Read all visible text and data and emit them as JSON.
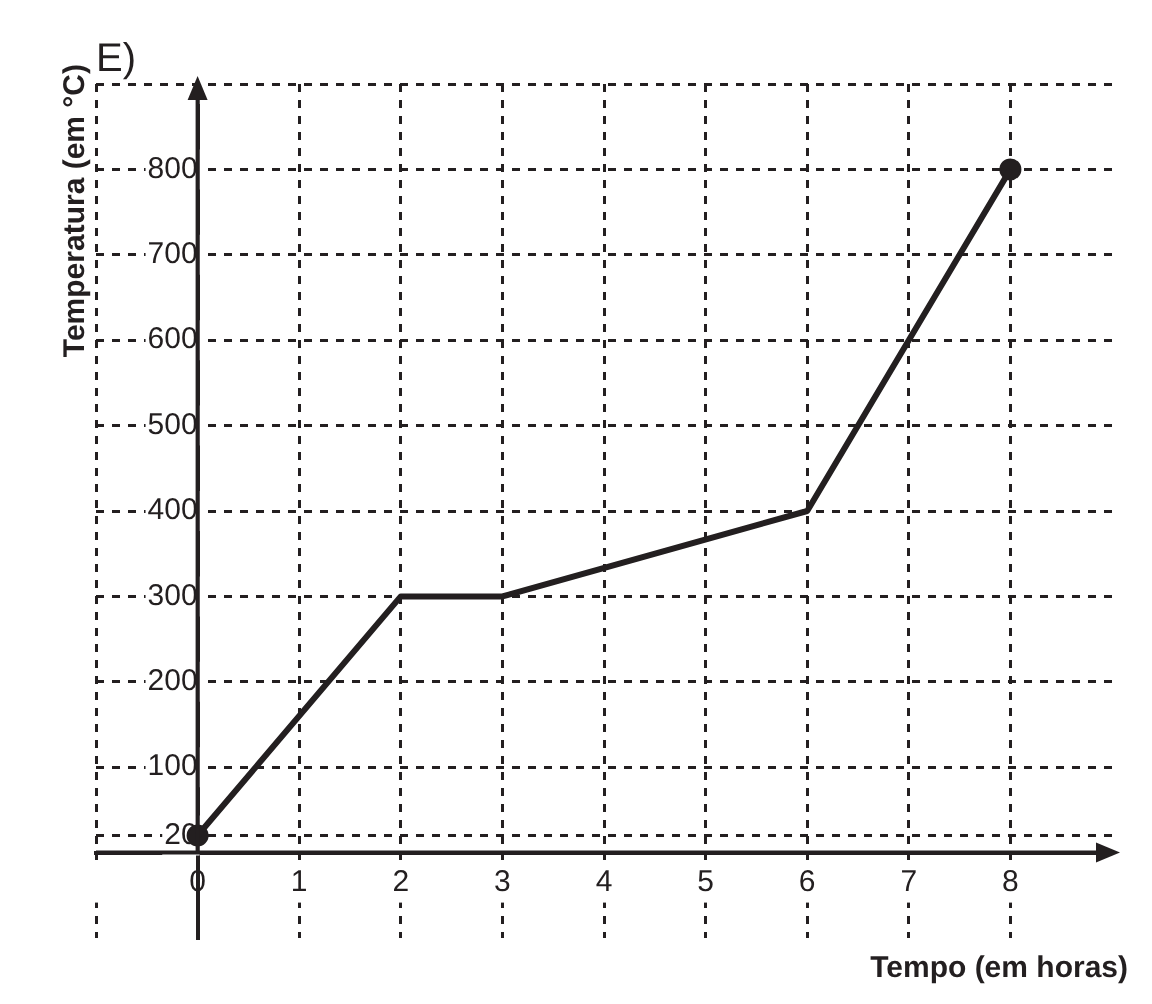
{
  "chart_data": {
    "type": "line",
    "title": "E)",
    "xlabel": "Tempo (em horas)",
    "ylabel": "Temperatura (em °C)",
    "xlim": [
      -1,
      9
    ],
    "xticks": [
      {
        "value": -1,
        "label": null
      },
      0,
      1,
      2,
      3,
      4,
      5,
      6,
      7,
      8
    ],
    "ylim": [
      -100,
      900
    ],
    "yticks": [
      20,
      100,
      200,
      300,
      400,
      500,
      600,
      700,
      800,
      {
        "value": 900,
        "label": null
      }
    ],
    "grid": true,
    "legend": false,
    "series": [
      {
        "type": "line",
        "x": [
          0,
          2,
          3,
          6,
          8
        ],
        "values": [
          20,
          300,
          300,
          400,
          800
        ],
        "color": "#231f20",
        "marker": "none"
      },
      {
        "type": "scatter",
        "x": [
          0,
          8
        ],
        "values": [
          20,
          800
        ],
        "color": "#231f20",
        "marker": "circle"
      }
    ]
  }
}
